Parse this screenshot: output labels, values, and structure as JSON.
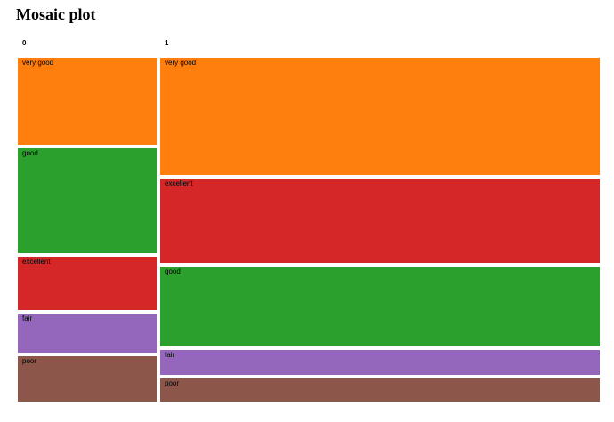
{
  "page": {
    "title": "Mosaic plot"
  },
  "chart_data": {
    "type": "mosaic",
    "title": "Mosaic plot",
    "columns": [
      {
        "label": "0",
        "share": 0.24,
        "segments": [
          {
            "label": "very good",
            "value": 0.26
          },
          {
            "label": "good",
            "value": 0.31
          },
          {
            "label": "excellent",
            "value": 0.16
          },
          {
            "label": "fair",
            "value": 0.115
          },
          {
            "label": "poor",
            "value": 0.135
          }
        ]
      },
      {
        "label": "1",
        "share": 0.76,
        "segments": [
          {
            "label": "very good",
            "value": 0.357
          },
          {
            "label": "excellent",
            "value": 0.255
          },
          {
            "label": "good",
            "value": 0.243
          },
          {
            "label": "fair",
            "value": 0.075
          },
          {
            "label": "poor",
            "value": 0.07
          }
        ]
      }
    ],
    "colors": {
      "very good": "#ff7f0e",
      "good": "#2ca02c",
      "excellent": "#d62728",
      "fair": "#9467bd",
      "poor": "#8c564b"
    },
    "legend": "none",
    "grid": false
  }
}
